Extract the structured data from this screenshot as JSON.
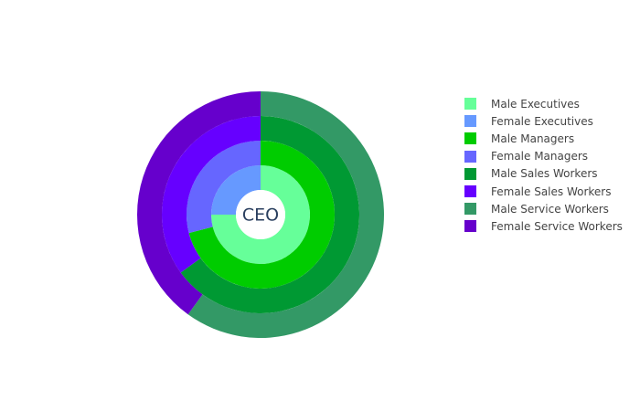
{
  "chart_data": {
    "type": "sunburst",
    "title": "",
    "center_label": "CEO",
    "rings": [
      {
        "name": "Executives",
        "segments": [
          {
            "label": "Male Executives",
            "value": 75,
            "color": "#66ff99"
          },
          {
            "label": "Female Executives",
            "value": 25,
            "color": "#6699ff"
          }
        ]
      },
      {
        "name": "Managers",
        "segments": [
          {
            "label": "Male Managers",
            "value": 71,
            "color": "#00cc00"
          },
          {
            "label": "Female Managers",
            "value": 29,
            "color": "#6666ff"
          }
        ]
      },
      {
        "name": "Sales Workers",
        "segments": [
          {
            "label": "Male Sales Workers",
            "value": 65,
            "color": "#009933"
          },
          {
            "label": "Female Sales Workers",
            "value": 35,
            "color": "#6600ff"
          }
        ]
      },
      {
        "name": "Service Workers",
        "segments": [
          {
            "label": "Male Service Workers",
            "value": 60,
            "color": "#339966"
          },
          {
            "label": "Female Service Workers",
            "value": 40,
            "color": "#6600cc"
          }
        ]
      }
    ],
    "legend": {
      "position": "right",
      "items": [
        {
          "label": "Male Executives",
          "color": "#66ff99"
        },
        {
          "label": "Female Executives",
          "color": "#6699ff"
        },
        {
          "label": "Male Managers",
          "color": "#00cc00"
        },
        {
          "label": "Female Managers",
          "color": "#6666ff"
        },
        {
          "label": "Male Sales Workers",
          "color": "#009933"
        },
        {
          "label": "Female Sales Workers",
          "color": "#6600ff"
        },
        {
          "label": "Male Service Workers",
          "color": "#339966"
        },
        {
          "label": "Female Service Workers",
          "color": "#6600cc"
        }
      ]
    }
  }
}
